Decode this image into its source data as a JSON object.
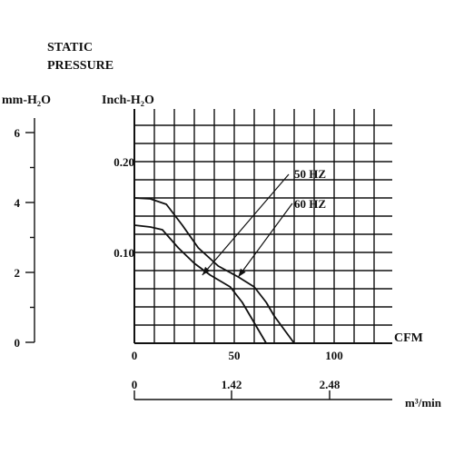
{
  "chart_data": {
    "type": "line",
    "title_line1": "STATIC",
    "title_line2": "PRESSURE",
    "left_unit_label": "mm-H₂O",
    "y_unit_label": "Inch-H₂O",
    "x_unit_label": "CFM",
    "bottom_unit_label": "m³/min",
    "x_ticks": [
      "0",
      "50",
      "100"
    ],
    "y_ticks": [
      "0.10",
      "0.20"
    ],
    "left_ticks": [
      "0",
      "2",
      "4",
      "6"
    ],
    "bottom_ticks": [
      "0",
      "1.42",
      "2.48"
    ],
    "xlim": [
      0,
      128
    ],
    "ylim": [
      0,
      0.26
    ],
    "grid": true,
    "series": [
      {
        "name": "50 HZ",
        "x": [
          0,
          8,
          14,
          22,
          30,
          38,
          48,
          54,
          58,
          62,
          66
        ],
        "y": [
          0.13,
          0.128,
          0.125,
          0.105,
          0.088,
          0.075,
          0.062,
          0.045,
          0.03,
          0.015,
          0.0
        ]
      },
      {
        "name": "60 HZ",
        "x": [
          0,
          8,
          16,
          24,
          32,
          42,
          52,
          60,
          66,
          70,
          76,
          80
        ],
        "y": [
          0.16,
          0.159,
          0.153,
          0.13,
          0.105,
          0.085,
          0.073,
          0.062,
          0.045,
          0.03,
          0.012,
          0.0
        ]
      }
    ],
    "annotations": [
      {
        "text": "50 HZ",
        "series": 0,
        "point_x": 34,
        "point_y": 0.075
      },
      {
        "text": "60 HZ",
        "series": 1,
        "point_x": 52,
        "point_y": 0.073
      }
    ]
  }
}
